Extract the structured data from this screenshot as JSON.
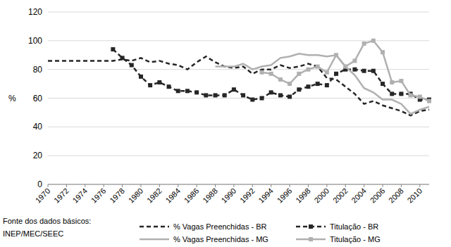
{
  "chart_data": {
    "type": "line",
    "y_label": "%",
    "annotations": [
      "Fonte dos dados básicos:",
      "INEP/MEC/SEEC"
    ],
    "x": [
      1970,
      1971,
      1972,
      1973,
      1974,
      1975,
      1976,
      1977,
      1978,
      1979,
      1980,
      1981,
      1982,
      1983,
      1984,
      1985,
      1986,
      1987,
      1988,
      1989,
      1990,
      1991,
      1992,
      1993,
      1994,
      1995,
      1996,
      1997,
      1998,
      1999,
      2000,
      2001,
      2002,
      2003,
      2004,
      2005,
      2006,
      2007,
      2008,
      2009,
      2010,
      2011
    ],
    "xlim": [
      1970,
      2011
    ],
    "xticks": [
      1970,
      1972,
      1974,
      1976,
      1978,
      1980,
      1982,
      1984,
      1986,
      1988,
      1990,
      1992,
      1994,
      1996,
      1998,
      2000,
      2002,
      2004,
      2006,
      2008,
      2010
    ],
    "ylim": [
      0,
      120
    ],
    "yticks": [
      0,
      20,
      40,
      60,
      80,
      100,
      120
    ],
    "grid": true,
    "legend": "bottom",
    "series": [
      {
        "name": "% Vagas Preenchidas - BR",
        "color": "#262626",
        "line_style": "dashed",
        "marker": "none",
        "values": [
          86,
          86,
          86,
          86,
          86,
          86,
          86,
          86,
          87,
          86,
          88,
          85,
          86,
          84,
          83,
          80,
          85,
          89,
          85,
          82,
          81,
          82,
          77,
          80,
          80,
          83,
          81,
          82,
          84,
          82,
          74,
          73,
          68,
          63,
          56,
          58,
          55,
          53,
          51,
          48,
          51,
          52
        ]
      },
      {
        "name": "Titulação - BR",
        "color": "#262626",
        "line_style": "dashed",
        "marker": "square",
        "values": [
          null,
          null,
          null,
          null,
          null,
          null,
          null,
          94,
          88,
          83,
          75,
          69,
          71,
          68,
          65,
          65,
          64,
          62,
          62,
          62,
          66,
          62,
          59,
          60,
          64,
          62,
          61,
          66,
          68,
          70,
          69,
          77,
          80,
          80,
          79,
          79,
          70,
          63,
          63,
          63,
          59,
          59
        ]
      },
      {
        "name": "% Vagas Preenchidas - MG",
        "color": "#b0b0b0",
        "line_style": "solid",
        "marker": "none",
        "values": [
          null,
          null,
          null,
          null,
          null,
          null,
          null,
          null,
          null,
          null,
          null,
          null,
          null,
          null,
          null,
          null,
          null,
          null,
          82,
          82,
          82,
          84,
          80,
          82,
          83,
          88,
          89,
          91,
          90,
          90,
          89,
          90,
          82,
          76,
          67,
          64,
          59,
          59,
          56,
          49,
          52,
          54
        ]
      },
      {
        "name": "Titulação - MG",
        "color": "#b0b0b0",
        "line_style": "solid",
        "marker": "square",
        "values": [
          null,
          null,
          null,
          null,
          null,
          null,
          null,
          null,
          null,
          null,
          null,
          null,
          null,
          null,
          null,
          null,
          null,
          null,
          null,
          null,
          null,
          null,
          null,
          78,
          77,
          73,
          70,
          77,
          80,
          82,
          78,
          90,
          82,
          86,
          98,
          100,
          92,
          71,
          72,
          62,
          61,
          58
        ]
      }
    ]
  }
}
